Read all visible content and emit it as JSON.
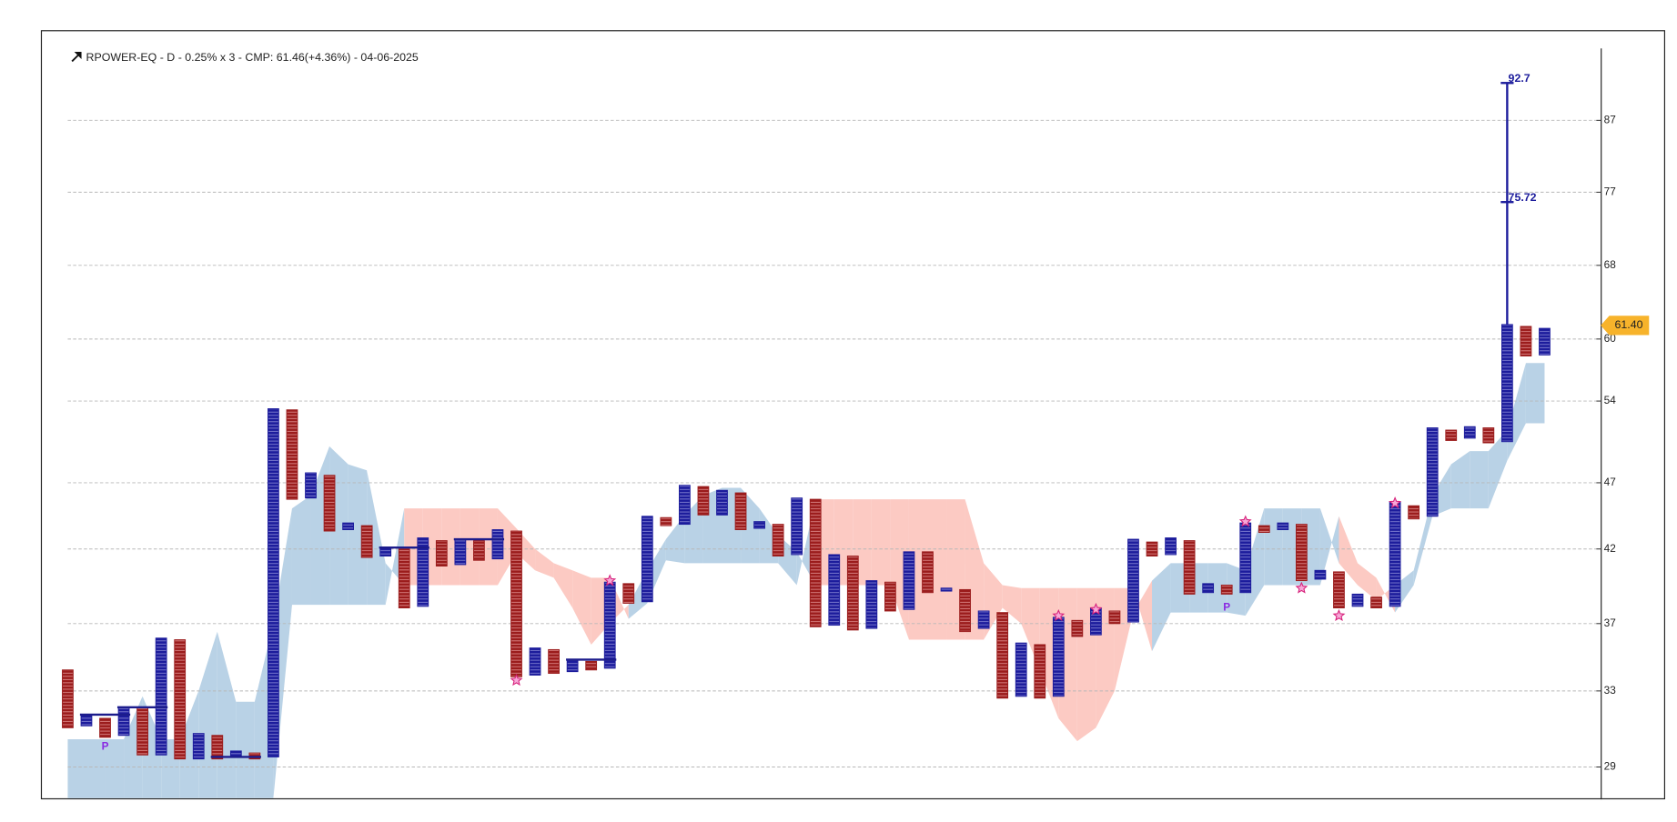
{
  "chart_data": {
    "type": "point-figure",
    "title": "RPOWER-EQ - D - 0.25% x 3 - CMP: 61.46(+4.36%) - 04-06-2025",
    "log_scale": true,
    "grid": true,
    "ylim": [
      27.5,
      98.3
    ],
    "yticks": [
      29,
      33,
      37,
      42,
      47,
      54,
      60,
      68,
      77,
      87
    ],
    "x_color": "#1c1c9c",
    "o_color": "#9b1c1c",
    "cloud_up_color": "#b9d2e6",
    "cloud_down_color": "#fccac3",
    "columns": [
      {
        "box": "O",
        "high": 34.2,
        "low": 31.0
      },
      {
        "box": "X",
        "high": 31.7,
        "low": 31.1
      },
      {
        "box": "O",
        "high": 31.5,
        "low": 30.5
      },
      {
        "box": "X",
        "high": 32.1,
        "low": 30.6
      },
      {
        "box": "O",
        "high": 32.1,
        "low": 29.6
      },
      {
        "box": "X",
        "high": 36.1,
        "low": 29.6
      },
      {
        "box": "O",
        "high": 36.0,
        "low": 29.4
      },
      {
        "box": "X",
        "high": 30.7,
        "low": 29.4
      },
      {
        "box": "O",
        "high": 30.6,
        "low": 29.4
      },
      {
        "box": "X",
        "high": 29.8,
        "low": 29.5
      },
      {
        "box": "O",
        "high": 29.7,
        "low": 29.4
      },
      {
        "box": "X",
        "high": 53.3,
        "low": 29.5
      },
      {
        "box": "O",
        "high": 53.2,
        "low": 45.7
      },
      {
        "box": "X",
        "high": 47.8,
        "low": 45.8
      },
      {
        "box": "O",
        "high": 47.6,
        "low": 43.3
      },
      {
        "box": "X",
        "high": 43.9,
        "low": 43.4
      },
      {
        "box": "O",
        "high": 43.7,
        "low": 41.4
      },
      {
        "box": "X",
        "high": 42.1,
        "low": 41.5
      },
      {
        "box": "O",
        "high": 42.0,
        "low": 38.0
      },
      {
        "box": "X",
        "high": 42.8,
        "low": 38.1
      },
      {
        "box": "O",
        "high": 42.6,
        "low": 40.8
      },
      {
        "box": "X",
        "high": 42.7,
        "low": 40.9
      },
      {
        "box": "O",
        "high": 42.6,
        "low": 41.2
      },
      {
        "box": "X",
        "high": 43.4,
        "low": 41.3
      },
      {
        "box": "O",
        "high": 43.3,
        "low": 33.8
      },
      {
        "box": "X",
        "high": 35.5,
        "low": 33.9
      },
      {
        "box": "O",
        "high": 35.4,
        "low": 34.0
      },
      {
        "box": "X",
        "high": 34.8,
        "low": 34.1
      },
      {
        "box": "O",
        "high": 34.7,
        "low": 34.2
      },
      {
        "box": "X",
        "high": 39.7,
        "low": 34.3
      },
      {
        "box": "O",
        "high": 39.6,
        "low": 38.3
      },
      {
        "box": "X",
        "high": 44.4,
        "low": 38.4
      },
      {
        "box": "O",
        "high": 44.3,
        "low": 43.7
      },
      {
        "box": "X",
        "high": 46.8,
        "low": 43.8
      },
      {
        "box": "O",
        "high": 46.7,
        "low": 44.5
      },
      {
        "box": "X",
        "high": 46.4,
        "low": 44.5
      },
      {
        "box": "O",
        "high": 46.2,
        "low": 43.4
      },
      {
        "box": "X",
        "high": 44.0,
        "low": 43.5
      },
      {
        "box": "O",
        "high": 43.8,
        "low": 41.5
      },
      {
        "box": "X",
        "high": 45.8,
        "low": 41.6
      },
      {
        "box": "O",
        "high": 45.7,
        "low": 36.8
      },
      {
        "box": "X",
        "high": 41.6,
        "low": 36.9
      },
      {
        "box": "O",
        "high": 41.5,
        "low": 36.6
      },
      {
        "box": "X",
        "high": 39.8,
        "low": 36.7
      },
      {
        "box": "O",
        "high": 39.7,
        "low": 37.8
      },
      {
        "box": "X",
        "high": 41.8,
        "low": 37.9
      },
      {
        "box": "O",
        "high": 41.8,
        "low": 39.0
      },
      {
        "box": "X",
        "high": 39.3,
        "low": 39.1
      },
      {
        "box": "O",
        "high": 39.2,
        "low": 36.5
      },
      {
        "box": "X",
        "high": 37.8,
        "low": 36.7
      },
      {
        "box": "O",
        "high": 37.7,
        "low": 32.6
      },
      {
        "box": "X",
        "high": 35.8,
        "low": 32.7
      },
      {
        "box": "O",
        "high": 35.7,
        "low": 32.6
      },
      {
        "box": "X",
        "high": 37.4,
        "low": 32.7
      },
      {
        "box": "O",
        "high": 37.2,
        "low": 36.2
      },
      {
        "box": "X",
        "high": 38.0,
        "low": 36.3
      },
      {
        "box": "O",
        "high": 37.8,
        "low": 37.0
      },
      {
        "box": "X",
        "high": 42.7,
        "low": 37.1
      },
      {
        "box": "O",
        "high": 42.5,
        "low": 41.5
      },
      {
        "box": "X",
        "high": 42.8,
        "low": 41.6
      },
      {
        "box": "O",
        "high": 42.6,
        "low": 38.9
      },
      {
        "box": "X",
        "high": 39.6,
        "low": 39.0
      },
      {
        "box": "O",
        "high": 39.5,
        "low": 38.9
      },
      {
        "box": "X",
        "high": 43.9,
        "low": 39.0
      },
      {
        "box": "O",
        "high": 43.7,
        "low": 43.2
      },
      {
        "box": "X",
        "high": 43.9,
        "low": 43.4
      },
      {
        "box": "O",
        "high": 43.8,
        "low": 39.8
      },
      {
        "box": "X",
        "high": 40.5,
        "low": 39.9
      },
      {
        "box": "O",
        "high": 40.4,
        "low": 38.0
      },
      {
        "box": "X",
        "high": 38.9,
        "low": 38.1
      },
      {
        "box": "O",
        "high": 38.7,
        "low": 38.0
      },
      {
        "box": "X",
        "high": 45.5,
        "low": 38.1
      },
      {
        "box": "O",
        "high": 45.2,
        "low": 44.2
      },
      {
        "box": "X",
        "high": 51.6,
        "low": 44.4
      },
      {
        "box": "O",
        "high": 51.4,
        "low": 50.5
      },
      {
        "box": "X",
        "high": 51.7,
        "low": 50.7
      },
      {
        "box": "O",
        "high": 51.6,
        "low": 50.3
      },
      {
        "box": "X",
        "high": 61.5,
        "low": 50.4
      },
      {
        "box": "O",
        "high": 61.3,
        "low": 58.3
      },
      {
        "box": "X",
        "high": 61.1,
        "low": 58.4
      }
    ],
    "cloud": {
      "span_a": [
        30.4,
        30.4,
        30.4,
        30.4,
        32.7,
        30.4,
        30.4,
        33,
        36.5,
        32.4,
        32.4,
        37,
        45,
        46,
        50,
        48.5,
        48,
        41,
        39.5,
        39.5,
        39.5,
        39.5,
        39.5,
        39.5,
        41.7,
        40.5,
        40,
        38,
        35.7,
        37,
        38.2,
        40.5,
        42.7,
        44.5,
        46,
        46.6,
        46.6,
        45,
        43,
        41.8,
        39.5,
        39.5,
        39.5,
        39.5,
        39.5,
        36,
        36,
        36,
        36,
        36,
        38,
        37,
        34.2,
        31.5,
        30.3,
        31,
        33,
        37.7,
        39.8,
        41,
        41,
        41,
        41,
        40.5,
        45,
        45,
        45,
        45,
        41,
        39.5,
        38.5,
        39.5,
        40.5,
        46,
        48.5,
        49.6,
        49.6,
        51.4,
        57.6,
        57.6
      ],
      "span_b": [
        27.5,
        27.5,
        27.5,
        27.5,
        27.5,
        27.5,
        27.5,
        27.5,
        27.5,
        27.5,
        27.5,
        27.5,
        38.2,
        38.2,
        38.2,
        38.2,
        38.2,
        38.2,
        45,
        45,
        45,
        45,
        45,
        45,
        43.5,
        42,
        41,
        40.5,
        40,
        40,
        37.3,
        38.3,
        41.2,
        41,
        41,
        41,
        41,
        41,
        41,
        39.5,
        45.7,
        45.7,
        45.7,
        45.7,
        45.7,
        45.7,
        45.7,
        45.7,
        45.7,
        41,
        39.5,
        39.3,
        39.3,
        39.3,
        39.3,
        39.3,
        39.3,
        39.3,
        35.3,
        37.7,
        37.7,
        37.7,
        37.7,
        37.5,
        39.5,
        39.5,
        39.5,
        39.5,
        44.4,
        41,
        40,
        37.7,
        39.5,
        44.4,
        45,
        45,
        45,
        48.8,
        52,
        52
      ]
    },
    "levels": [
      {
        "start": 1,
        "end": 3,
        "value": 31.7
      },
      {
        "start": 3,
        "end": 5,
        "value": 32.1
      },
      {
        "start": 8,
        "end": 10,
        "value": 29.5
      },
      {
        "start": 17,
        "end": 19,
        "value": 42.1
      },
      {
        "start": 21,
        "end": 23,
        "value": 42.7
      },
      {
        "start": 27,
        "end": 29,
        "value": 34.8
      }
    ],
    "stars": [
      {
        "column": 24,
        "value": 33.6
      },
      {
        "column": 29,
        "value": 39.8
      },
      {
        "column": 53,
        "value": 37.5
      },
      {
        "column": 55,
        "value": 37.9
      },
      {
        "column": 63,
        "value": 44.0
      },
      {
        "column": 66,
        "value": 39.3
      },
      {
        "column": 68,
        "value": 37.5
      },
      {
        "column": 71,
        "value": 45.4
      }
    ],
    "markers": [
      {
        "column": 2,
        "value": 30.0,
        "label": "P"
      },
      {
        "column": 62,
        "value": 38.0,
        "label": "P"
      }
    ],
    "target_column": 77,
    "targets": [
      92.7,
      75.72
    ],
    "price": {
      "value": 61.4,
      "label": "61.40"
    }
  }
}
